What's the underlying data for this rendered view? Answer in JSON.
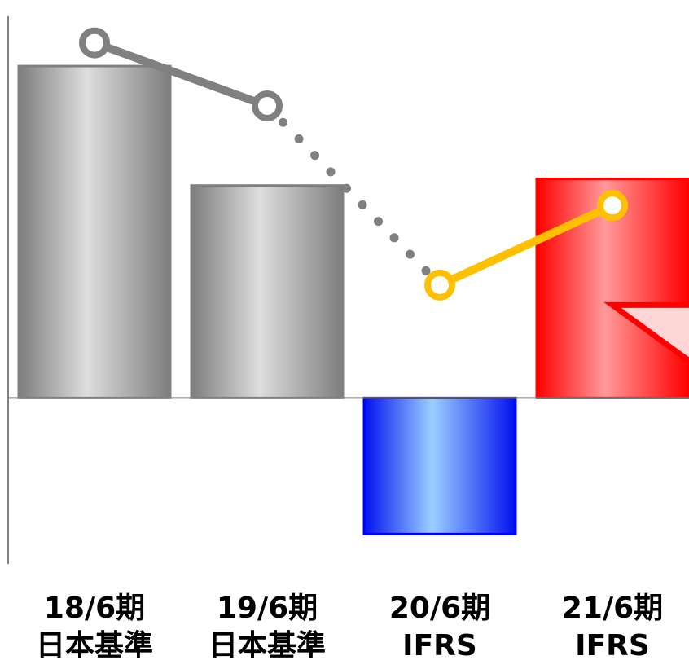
{
  "chart_data": {
    "type": "bar",
    "categories": [
      {
        "period": "18/6期",
        "standard": "日本基準"
      },
      {
        "period": "19/6期",
        "standard": "日本基準"
      },
      {
        "period": "20/6期",
        "standard": "IFRS"
      },
      {
        "period": "21/6期",
        "standard": "IFRS"
      }
    ],
    "values": [
      100,
      64,
      -41,
      66
    ],
    "ylim": [
      -50,
      115
    ],
    "line_values": [
      107,
      88,
      34,
      58
    ],
    "bar_colors": [
      "#808080",
      "#808080",
      "#0000ff",
      "#ff0000"
    ],
    "line_colors": {
      "actual": "#808080",
      "forecast": "#ffc000"
    },
    "grid": false,
    "legend": "none"
  }
}
